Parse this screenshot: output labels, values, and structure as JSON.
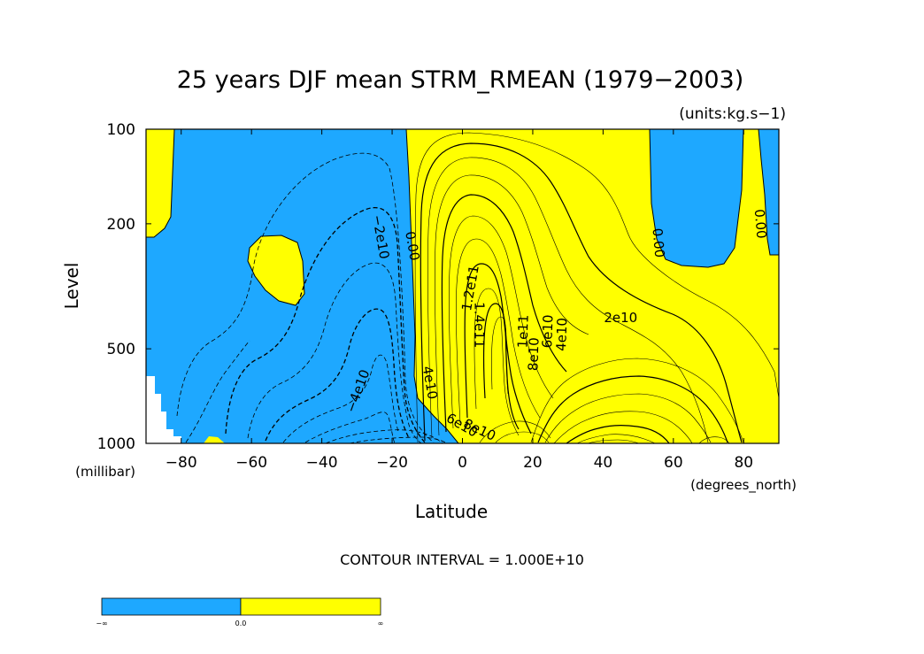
{
  "chart_data": {
    "type": "contour",
    "title": "25 years DJF mean STRM_RMEAN (1979−2003)",
    "units_label": "(units:kg.s−1)",
    "xlabel": "Latitude",
    "ylabel": "Level",
    "x_units": "(degrees_north)",
    "y_units": "(millibar)",
    "xlim": [
      -90,
      90
    ],
    "ylim": [
      1000,
      100
    ],
    "y_scale": "log",
    "x_ticks": [
      -80,
      -60,
      -40,
      -20,
      0,
      20,
      40,
      60,
      80
    ],
    "x_tick_labels": [
      "−80",
      "−60",
      "−40",
      "−20",
      "0",
      "20",
      "40",
      "60",
      "80"
    ],
    "y_ticks": [
      100,
      200,
      500,
      1000
    ],
    "y_tick_labels": [
      "100",
      "200",
      "500",
      "1000"
    ],
    "contour_interval_text": "CONTOUR INTERVAL = 1.000E+10",
    "fill_colors": {
      "negative": "#1ea8ff",
      "positive": "#ffff00"
    },
    "contour_labels": [
      {
        "text": "−2e10",
        "lat": -23,
        "lev": 220,
        "rot": 80
      },
      {
        "text": "−4e10",
        "lat": -30,
        "lev": 680,
        "rot": -70
      },
      {
        "text": "0.00",
        "lat": -14,
        "lev": 235,
        "rot": 80
      },
      {
        "text": "1.2e11",
        "lat": 2,
        "lev": 320,
        "rot": -80
      },
      {
        "text": "1.4e11",
        "lat": 5,
        "lev": 420,
        "rot": 90
      },
      {
        "text": "4e10",
        "lat": -9,
        "lev": 640,
        "rot": 80
      },
      {
        "text": "6e10",
        "lat": 0,
        "lev": 870,
        "rot": 30
      },
      {
        "text": "8e10",
        "lat": 5,
        "lev": 900,
        "rot": 25
      },
      {
        "text": "1e11",
        "lat": 17,
        "lev": 440,
        "rot": -88
      },
      {
        "text": "8e10",
        "lat": 20,
        "lev": 520,
        "rot": -88
      },
      {
        "text": "6e10",
        "lat": 24,
        "lev": 440,
        "rot": -88
      },
      {
        "text": "4e10",
        "lat": 28,
        "lev": 450,
        "rot": -88
      },
      {
        "text": "2e10",
        "lat": 45,
        "lev": 395,
        "rot": 0
      },
      {
        "text": "0.00",
        "lat": 56,
        "lev": 230,
        "rot": 85
      },
      {
        "text": "0.00",
        "lat": 85,
        "lev": 200,
        "rot": 85
      }
    ],
    "colorbar": {
      "labels": [
        "−∞",
        "0.0",
        "∞"
      ],
      "colors": [
        "#1ea8ff",
        "#ffff00"
      ]
    }
  }
}
